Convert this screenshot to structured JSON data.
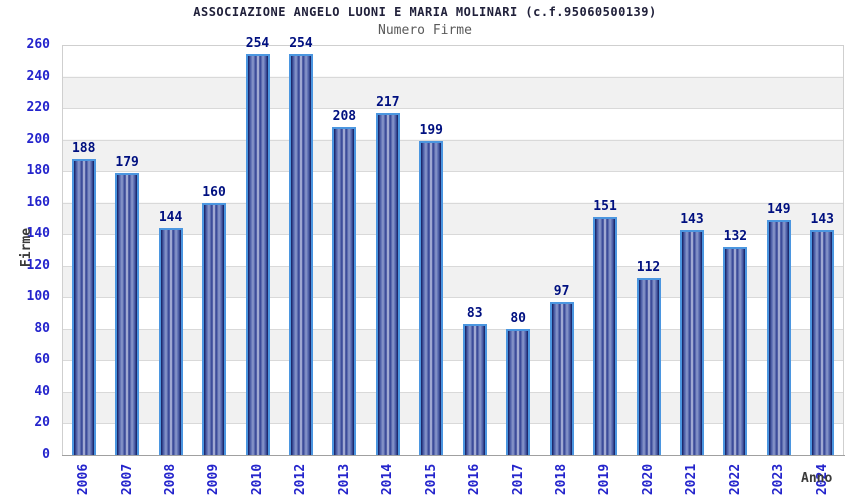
{
  "header": {
    "title": "ASSOCIAZIONE ANGELO LUONI E MARIA MOLINARI (c.f.95060500139)",
    "subtitle": "Numero Firme"
  },
  "chart_data": {
    "type": "bar",
    "title": "ASSOCIAZIONE ANGELO LUONI E MARIA MOLINARI (c.f.95060500139)",
    "subtitle": "Numero Firme",
    "xlabel": "Anno",
    "ylabel": "Firme",
    "categories": [
      "2006",
      "2007",
      "2008",
      "2009",
      "2010",
      "2012",
      "2013",
      "2014",
      "2015",
      "2016",
      "2017",
      "2018",
      "2019",
      "2020",
      "2021",
      "2022",
      "2023",
      "2024"
    ],
    "values": [
      188,
      179,
      144,
      160,
      254,
      254,
      208,
      217,
      199,
      83,
      80,
      97,
      151,
      112,
      143,
      132,
      149,
      143
    ],
    "ylim": [
      0,
      260
    ],
    "ytick_step": 20,
    "grid": true,
    "legend": "none",
    "bands": "alternating horizontal white/light-gray every 20 units",
    "colors": {
      "bar_edge": "#4b96e0",
      "bar_dark": "#111b5e",
      "bar_light": "#c6cde8",
      "value_label": "#001080",
      "tick_label": "#2424cc",
      "band_gray": "#f1f1f1",
      "gridline": "#d9d9d9",
      "axis_line": "#a0a0a0",
      "title_text": "#20203a",
      "subtitle_text": "#5a5a5a",
      "axis_title_text": "#3a3a3a"
    }
  }
}
